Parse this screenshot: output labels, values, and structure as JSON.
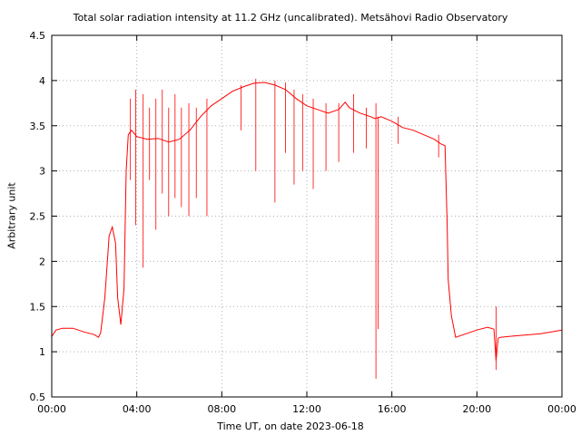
{
  "chart_data": {
    "type": "line",
    "title": "Total solar radiation intensity at 11.2 GHz (uncalibrated). Metsähovi Radio Observatory",
    "xlabel": "Time UT, on date 2023-06-18",
    "ylabel": "Arbitrary unit",
    "xlim": [
      0,
      24
    ],
    "ylim": [
      0.5,
      4.5
    ],
    "x_ticks": [
      0,
      4,
      8,
      12,
      16,
      20,
      24
    ],
    "x_tick_labels": [
      "00:00",
      "04:00",
      "08:00",
      "12:00",
      "16:00",
      "20:00",
      "00:00"
    ],
    "y_ticks": [
      0.5,
      1,
      1.5,
      2,
      2.5,
      3,
      3.5,
      4,
      4.5
    ],
    "y_tick_labels": [
      "0.5",
      "1",
      "1.5",
      "2",
      "2.5",
      "3",
      "3.5",
      "4",
      "4.5"
    ],
    "grid": true,
    "legend": false,
    "series": [
      {
        "color": "#ff0000",
        "x": [
          0.0,
          0.2,
          0.5,
          1.0,
          1.5,
          2.0,
          2.2,
          2.3,
          2.5,
          2.7,
          2.85,
          3.0,
          3.1,
          3.25,
          3.4,
          3.5,
          3.6,
          3.75,
          4.0,
          4.5,
          5.0,
          5.5,
          6.0,
          6.5,
          7.0,
          7.5,
          8.0,
          8.5,
          9.0,
          9.5,
          10.0,
          10.5,
          11.0,
          11.5,
          12.0,
          12.5,
          13.0,
          13.5,
          13.8,
          14.0,
          14.5,
          15.0,
          15.2,
          15.5,
          16.0,
          16.5,
          17.0,
          17.5,
          18.0,
          18.3,
          18.5,
          18.6,
          18.65,
          18.8,
          19.0,
          19.5,
          20.0,
          20.5,
          20.8,
          20.9,
          21.0,
          21.1,
          21.5,
          22.0,
          23.0,
          24.0
        ],
        "y": [
          1.17,
          1.24,
          1.26,
          1.26,
          1.22,
          1.19,
          1.16,
          1.21,
          1.6,
          2.28,
          2.38,
          2.2,
          1.6,
          1.3,
          1.7,
          3.0,
          3.4,
          3.45,
          3.38,
          3.35,
          3.36,
          3.32,
          3.35,
          3.45,
          3.6,
          3.72,
          3.8,
          3.88,
          3.93,
          3.97,
          3.98,
          3.95,
          3.9,
          3.8,
          3.72,
          3.68,
          3.64,
          3.68,
          3.76,
          3.7,
          3.64,
          3.6,
          3.58,
          3.6,
          3.55,
          3.48,
          3.45,
          3.4,
          3.35,
          3.3,
          3.28,
          2.4,
          1.8,
          1.4,
          1.16,
          1.2,
          1.24,
          1.27,
          1.25,
          0.9,
          1.15,
          1.16,
          1.17,
          1.18,
          1.2,
          1.24
        ]
      }
    ],
    "spikes": [
      {
        "x": 3.7,
        "low": 2.9,
        "high": 3.8
      },
      {
        "x": 3.95,
        "low": 2.4,
        "high": 3.9
      },
      {
        "x": 4.3,
        "low": 1.93,
        "high": 3.85
      },
      {
        "x": 4.6,
        "low": 2.9,
        "high": 3.7
      },
      {
        "x": 4.9,
        "low": 2.35,
        "high": 3.8
      },
      {
        "x": 5.2,
        "low": 2.75,
        "high": 3.9
      },
      {
        "x": 5.5,
        "low": 2.5,
        "high": 3.7
      },
      {
        "x": 5.8,
        "low": 2.7,
        "high": 3.85
      },
      {
        "x": 6.1,
        "low": 2.6,
        "high": 3.7
      },
      {
        "x": 6.45,
        "low": 2.5,
        "high": 3.75
      },
      {
        "x": 6.8,
        "low": 2.7,
        "high": 3.7
      },
      {
        "x": 7.3,
        "low": 2.5,
        "high": 3.8
      },
      {
        "x": 8.9,
        "low": 3.45,
        "high": 3.95
      },
      {
        "x": 9.6,
        "low": 3.0,
        "high": 4.02
      },
      {
        "x": 10.5,
        "low": 2.65,
        "high": 4.0
      },
      {
        "x": 11.0,
        "low": 3.2,
        "high": 3.98
      },
      {
        "x": 11.4,
        "low": 2.85,
        "high": 3.9
      },
      {
        "x": 11.8,
        "low": 3.0,
        "high": 3.85
      },
      {
        "x": 12.3,
        "low": 2.8,
        "high": 3.8
      },
      {
        "x": 12.9,
        "low": 3.0,
        "high": 3.75
      },
      {
        "x": 13.5,
        "low": 3.1,
        "high": 3.75
      },
      {
        "x": 14.2,
        "low": 3.2,
        "high": 3.85
      },
      {
        "x": 14.8,
        "low": 3.25,
        "high": 3.7
      },
      {
        "x": 15.25,
        "low": 0.7,
        "high": 3.75
      },
      {
        "x": 15.35,
        "low": 1.25,
        "high": 3.6
      },
      {
        "x": 16.3,
        "low": 3.3,
        "high": 3.6
      },
      {
        "x": 18.2,
        "low": 3.15,
        "high": 3.4
      },
      {
        "x": 20.9,
        "low": 0.8,
        "high": 1.5
      }
    ]
  }
}
